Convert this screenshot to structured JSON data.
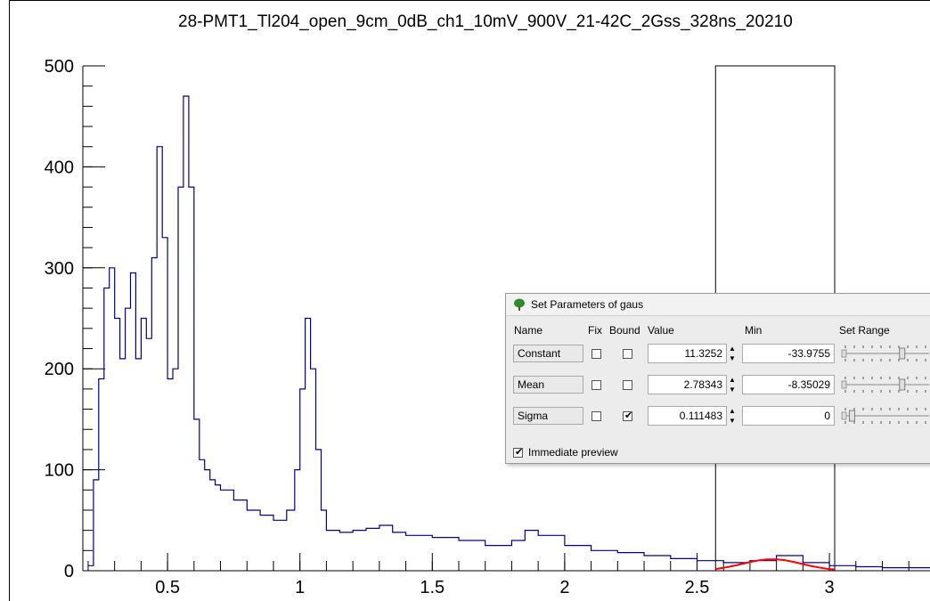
{
  "title": "28-PMT1_Tl204_open_9cm_0dB_ch1_10mV_900V_21-42C_2Gss_328ns_20210",
  "chart_data": {
    "type": "line",
    "xlim": [
      0.18,
      3.38
    ],
    "ylim": [
      0,
      500
    ],
    "xticks": [
      0.5,
      1,
      1.5,
      2,
      2.5,
      3
    ],
    "xtick_labels": [
      "0.5",
      "1",
      "1.5",
      "2",
      "2.5",
      "3"
    ],
    "yticks": [
      0,
      100,
      200,
      300,
      400,
      500
    ],
    "ytick_labels": [
      "0",
      "100",
      "200",
      "300",
      "400",
      "500"
    ],
    "series": [
      {
        "color": "#00008b",
        "x": [
          0.2,
          0.22,
          0.24,
          0.26,
          0.28,
          0.3,
          0.32,
          0.34,
          0.36,
          0.38,
          0.4,
          0.42,
          0.44,
          0.46,
          0.48,
          0.5,
          0.52,
          0.54,
          0.56,
          0.58,
          0.6,
          0.62,
          0.64,
          0.66,
          0.68,
          0.7,
          0.75,
          0.8,
          0.85,
          0.9,
          0.95,
          0.98,
          1.0,
          1.02,
          1.04,
          1.06,
          1.08,
          1.1,
          1.15,
          1.2,
          1.25,
          1.3,
          1.35,
          1.4,
          1.5,
          1.6,
          1.7,
          1.8,
          1.85,
          1.9,
          2.0,
          2.1,
          2.2,
          2.3,
          2.4,
          2.5,
          2.6,
          2.7,
          2.8,
          2.9,
          3.0,
          3.1,
          3.2,
          3.3,
          3.38
        ],
        "values": [
          5,
          90,
          190,
          280,
          300,
          250,
          210,
          260,
          295,
          210,
          250,
          230,
          310,
          420,
          330,
          190,
          200,
          380,
          470,
          380,
          150,
          110,
          100,
          90,
          85,
          80,
          70,
          60,
          55,
          50,
          60,
          100,
          180,
          250,
          200,
          120,
          60,
          40,
          38,
          40,
          42,
          45,
          38,
          35,
          33,
          30,
          25,
          30,
          40,
          35,
          25,
          20,
          18,
          15,
          12,
          10,
          8,
          10,
          15,
          8,
          5,
          4,
          3,
          3,
          3
        ]
      }
    ],
    "fit": {
      "name": "gaus",
      "color": "#ff0000",
      "constant": 11.3252,
      "mean": 2.78343,
      "sigma": 0.111483,
      "range": [
        2.57,
        3.02
      ]
    },
    "range_box": {
      "x": [
        2.57,
        3.02
      ],
      "y": [
        0,
        500
      ]
    }
  },
  "dialog": {
    "title": "Set Parameters of gaus",
    "headers": {
      "name": "Name",
      "fix": "Fix",
      "bound": "Bound",
      "value": "Value",
      "min": "Min",
      "set_range": "Set Range"
    },
    "params": [
      {
        "name": "Constant",
        "fix": false,
        "bound": false,
        "value": "11.3252",
        "min": "-33.9755",
        "slider_pos": 0.7
      },
      {
        "name": "Mean",
        "fix": false,
        "bound": false,
        "value": "2.78343",
        "min": "-8.35029",
        "slider_pos": 0.7
      },
      {
        "name": "Sigma",
        "fix": false,
        "bound": true,
        "value": "0.111483",
        "min": "0",
        "slider_pos": 0.1
      }
    ],
    "immediate_preview": {
      "label": "Immediate preview",
      "checked": true
    }
  }
}
